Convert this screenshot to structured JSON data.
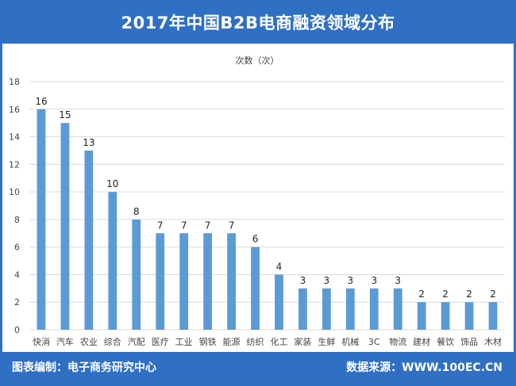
{
  "header": {
    "title": "2017年中国B2B电商融资领域分布"
  },
  "footer": {
    "left_text": "图表编制：电子商务研究中心",
    "right_text": "数据来源：WWW.100EC.CN"
  },
  "colors": {
    "brand": "#2f6fc4",
    "bar": "#5b9bd5",
    "grid": "#d9d9d9"
  },
  "chart_data": {
    "type": "bar",
    "title": "",
    "ylabel": "次数（次）",
    "xlabel": "",
    "categories": [
      "快消",
      "汽车",
      "农业",
      "综合",
      "汽配",
      "医疗",
      "工业",
      "钢铁",
      "能源",
      "纺织",
      "化工",
      "家装",
      "生鲜",
      "机械",
      "3C",
      "物流",
      "建材",
      "餐饮",
      "饰品",
      "木材"
    ],
    "values": [
      16,
      15,
      13,
      10,
      8,
      7,
      7,
      7,
      7,
      6,
      4,
      3,
      3,
      3,
      3,
      3,
      2,
      2,
      2,
      2
    ],
    "ylim": [
      0,
      18
    ],
    "yticks": [
      0,
      2,
      4,
      6,
      8,
      10,
      12,
      14,
      16,
      18
    ],
    "grid": true,
    "legend": "none",
    "data_labels": true
  }
}
